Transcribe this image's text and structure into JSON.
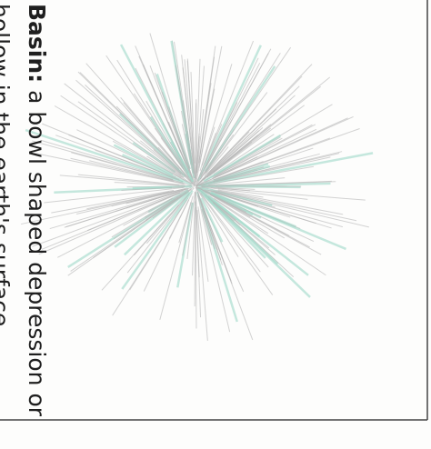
{
  "definition": {
    "term": "Basin:",
    "line1": "a bowl shaped depression or",
    "line2": "hollow in the earth's surface"
  }
}
